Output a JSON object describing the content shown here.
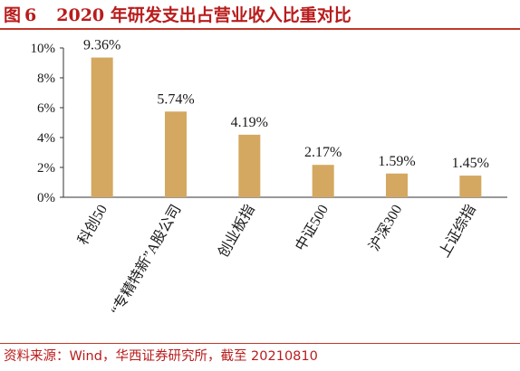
{
  "figure": {
    "label": "图",
    "number": "6",
    "title": "2020 年研发支出占营业收入比重对比"
  },
  "source": "资料来源：Wind，华西证券研究所，截至 20210810",
  "colors": {
    "bar": "#d4a860",
    "accent": "#b91c1c",
    "axis": "#333333"
  },
  "chart_data": {
    "type": "bar",
    "title": "2020 年研发支出占营业收入比重对比",
    "categories": [
      "科创50",
      "“专精特新”A股公司",
      "创业板指",
      "中证500",
      "沪深300",
      "上证综指"
    ],
    "values": [
      9.36,
      5.74,
      4.19,
      2.17,
      1.59,
      1.45
    ],
    "value_labels": [
      "9.36%",
      "5.74%",
      "4.19%",
      "2.17%",
      "1.59%",
      "1.45%"
    ],
    "y_ticks": [
      0,
      2,
      4,
      6,
      8,
      10
    ],
    "y_tick_labels": [
      "0%",
      "2%",
      "4%",
      "6%",
      "8%",
      "10%"
    ],
    "ylim": [
      0,
      10
    ],
    "xlabel": "",
    "ylabel": "",
    "grid": false,
    "legend": "none"
  }
}
